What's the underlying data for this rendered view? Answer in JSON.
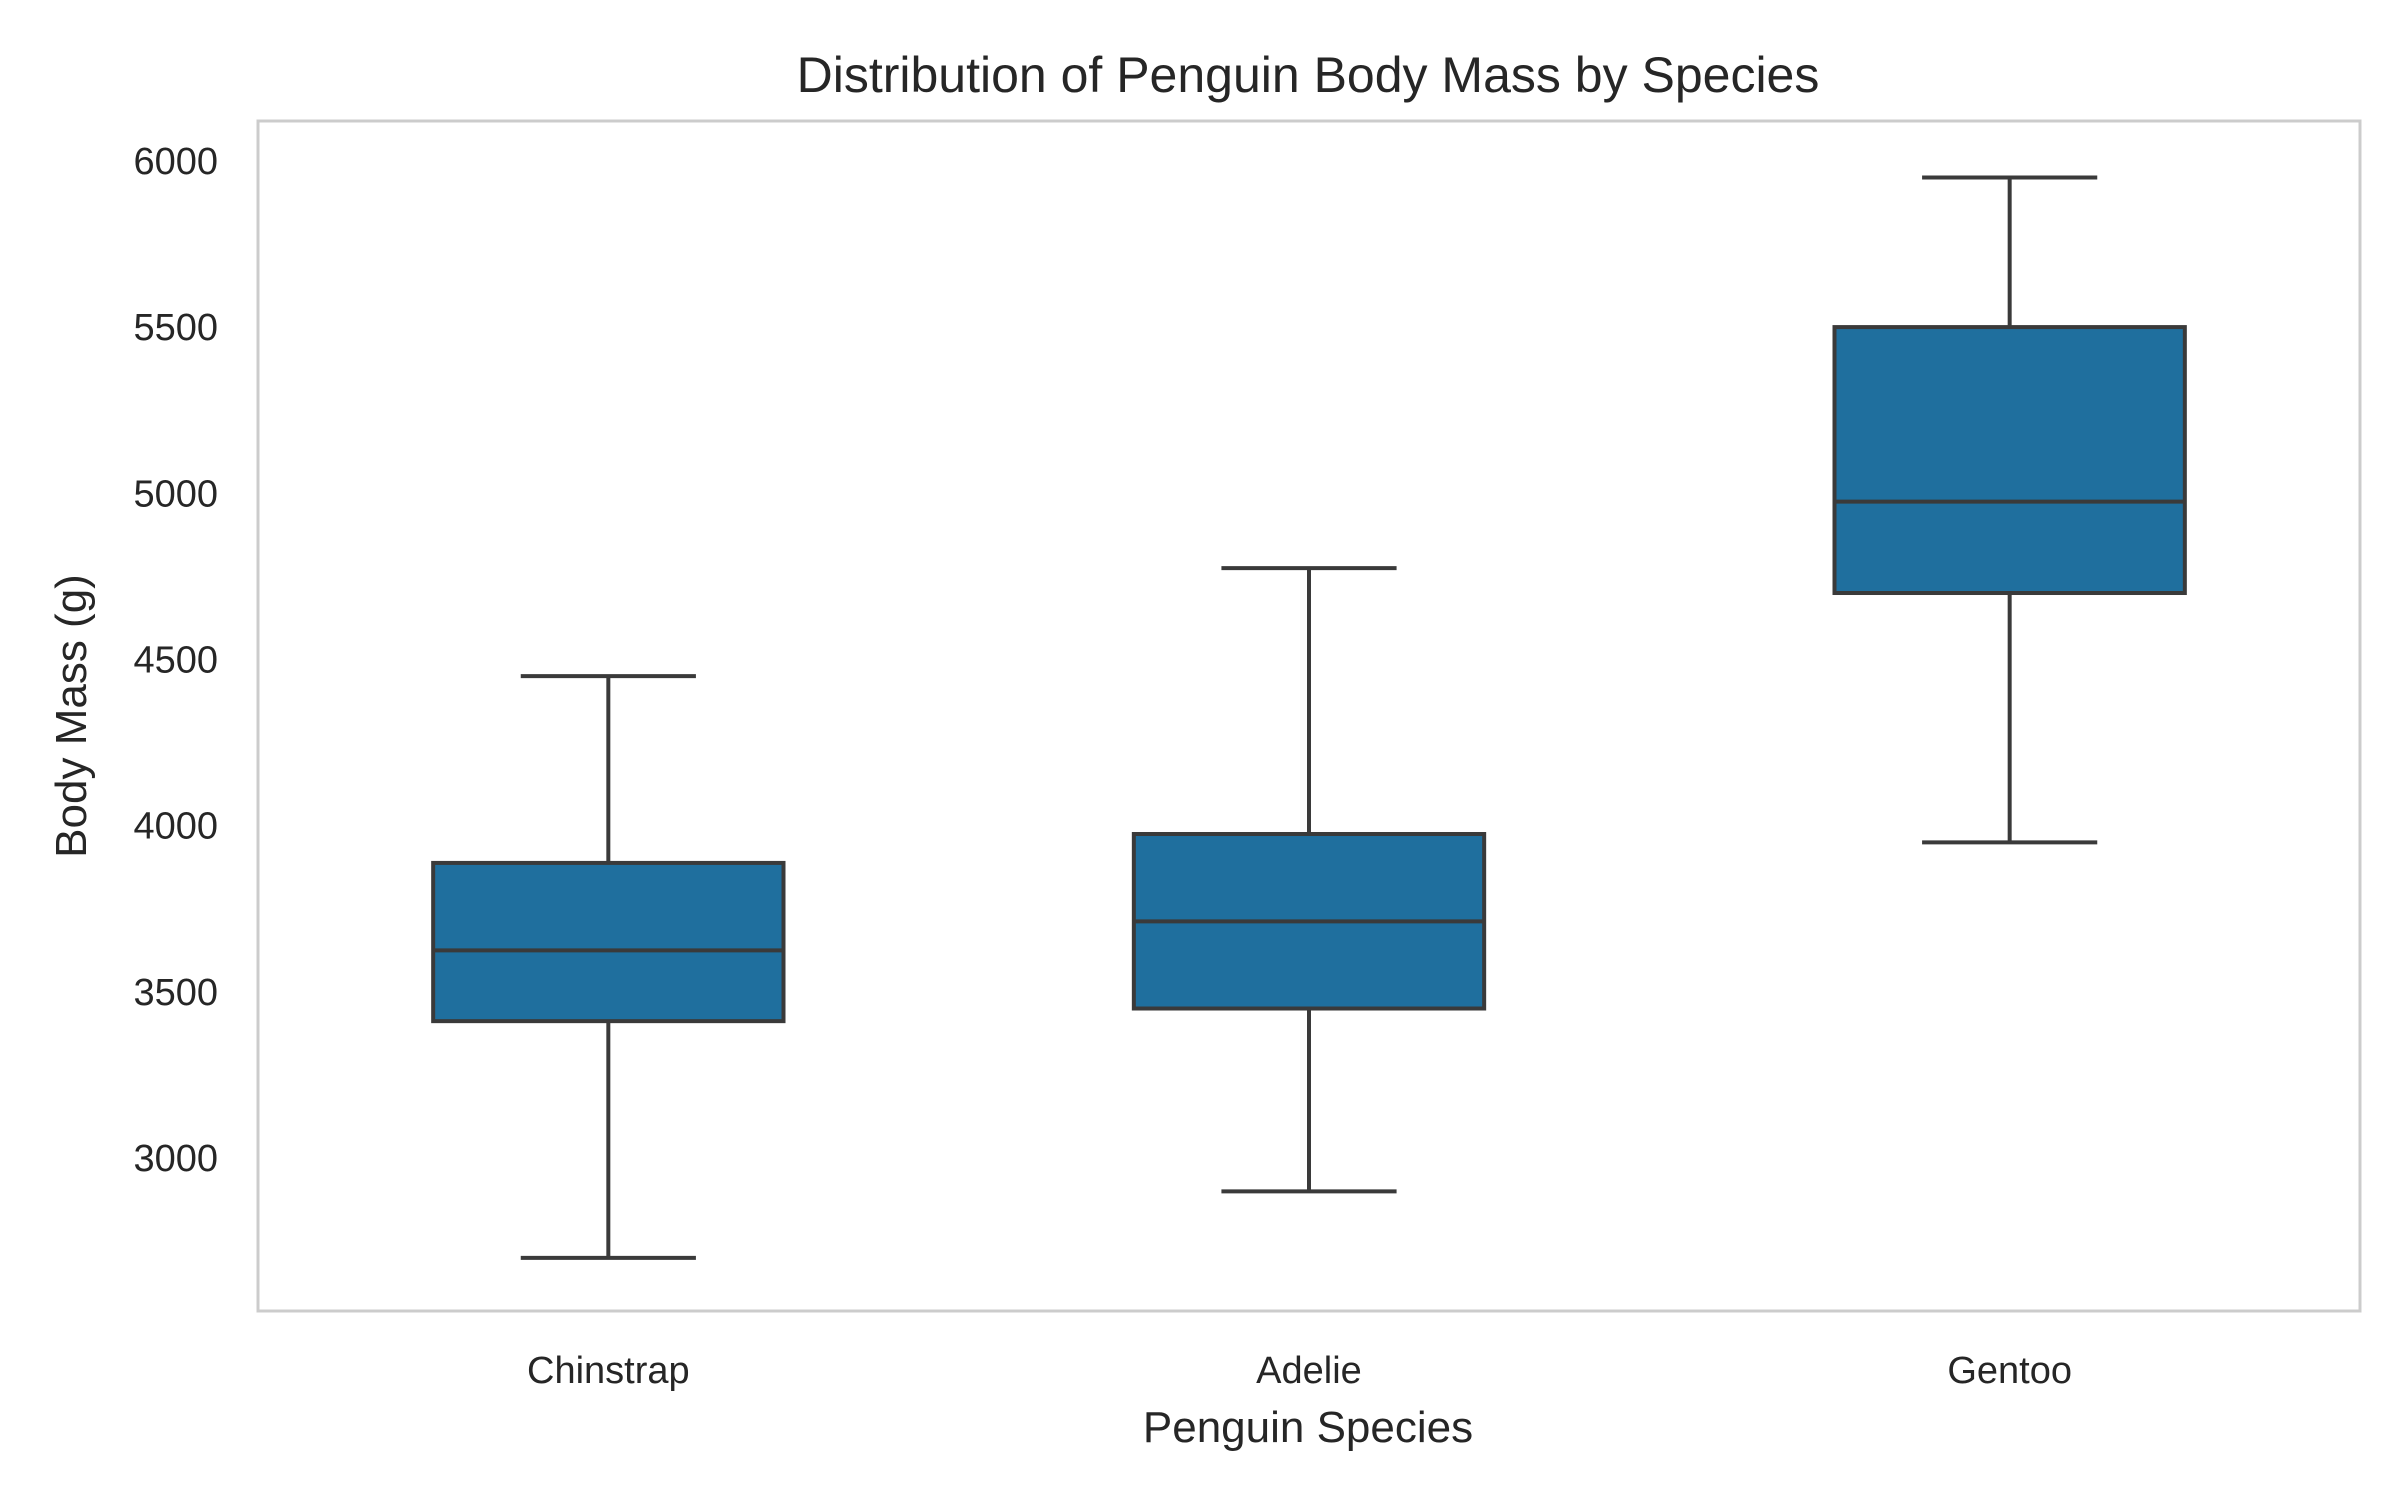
{
  "chart_data": {
    "type": "box",
    "title": "Distribution of Penguin Body Mass by Species",
    "xlabel": "Penguin Species",
    "ylabel": "Body Mass (g)",
    "ylim": [
      2540,
      6120
    ],
    "yticks": [
      3000,
      3500,
      4000,
      4500,
      5000,
      5500,
      6000
    ],
    "grid": false,
    "categories": [
      "Chinstrap",
      "Adelie",
      "Gentoo"
    ],
    "boxes": [
      {
        "category": "Chinstrap",
        "whisker_low": 2700,
        "q1": 3412,
        "median": 3625,
        "q3": 3888,
        "whisker_high": 4450
      },
      {
        "category": "Adelie",
        "whisker_low": 2900,
        "q1": 3450,
        "median": 3712,
        "q3": 3975,
        "whisker_high": 4775
      },
      {
        "category": "Gentoo",
        "whisker_low": 3950,
        "q1": 4700,
        "median": 4975,
        "q3": 5500,
        "whisker_high": 5950
      }
    ],
    "colors": {
      "box_fill": "#1f6f9e",
      "line": "#3a3a3a",
      "frame": "#cccccc",
      "text": "#262626"
    }
  }
}
